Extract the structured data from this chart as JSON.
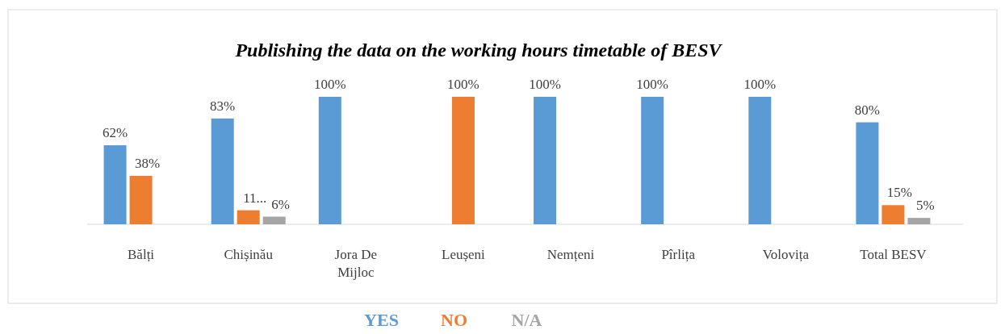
{
  "chart_data": {
    "type": "bar",
    "title": "Publishing the data on the working hours timetable of BESV",
    "categories": [
      "Bălți",
      "Chișinău",
      "Jora De Mijloc",
      "Leușeni",
      "Nemțeni",
      "Pîrlița",
      "Volovița",
      "Total BESV"
    ],
    "series": [
      {
        "name": "YES",
        "color": "#5b9bd5",
        "values": [
          62,
          83,
          100,
          0,
          100,
          100,
          100,
          80
        ],
        "value_labels": [
          "62%",
          "83%",
          "100%",
          null,
          "100%",
          "100%",
          "100%",
          "80%"
        ]
      },
      {
        "name": "NO",
        "color": "#ed7d31",
        "values": [
          38,
          11,
          0,
          100,
          0,
          0,
          0,
          15
        ],
        "value_labels": [
          "38%",
          "11...",
          null,
          "100%",
          null,
          null,
          null,
          "15%"
        ]
      },
      {
        "name": "N/A",
        "color": "#a5a5a5",
        "values": [
          0,
          6,
          0,
          0,
          0,
          0,
          0,
          5
        ],
        "value_labels": [
          null,
          "6%",
          null,
          null,
          null,
          null,
          null,
          "5%"
        ]
      }
    ],
    "legend": "bottom"
  }
}
